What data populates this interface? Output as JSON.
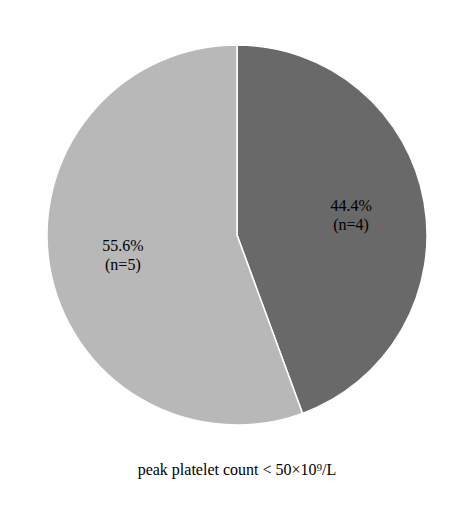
{
  "chart_data": {
    "type": "pie",
    "values": [
      44.4,
      55.6
    ],
    "value_labels": [
      "44.4%\n(n=4)",
      "55.6%\n(n=5)"
    ],
    "colors": [
      "#696969",
      "#b8b8b8"
    ],
    "xlabel": "peak platelet count < 50×10⁹/L",
    "data_labels": true
  }
}
